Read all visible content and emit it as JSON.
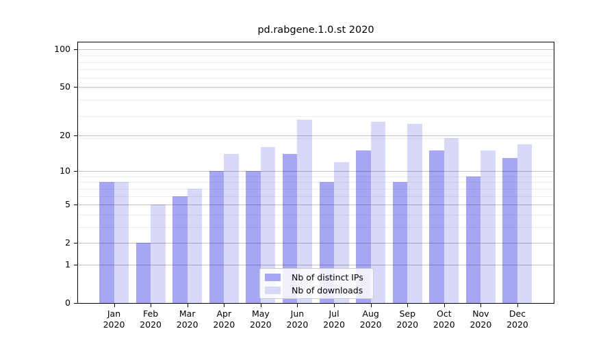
{
  "figure": {
    "background_color": "#ffffff"
  },
  "chart_data": {
    "type": "bar",
    "title": "pd.rabgene.1.0.st 2020",
    "categories": [
      "Jan",
      "Feb",
      "Mar",
      "Apr",
      "May",
      "Jun",
      "Jul",
      "Aug",
      "Sep",
      "Oct",
      "Nov",
      "Dec"
    ],
    "category_year": "2020",
    "series": [
      {
        "name": "Nb of distinct IPs",
        "color": "#a6a6f4",
        "values": [
          8,
          2,
          6,
          10,
          10,
          14,
          8,
          15,
          8,
          15,
          9,
          13
        ]
      },
      {
        "name": "Nb of downloads",
        "color": "#d8d8f9",
        "values": [
          8,
          5,
          7,
          14,
          16,
          27,
          12,
          26,
          25,
          19,
          15,
          17
        ]
      }
    ],
    "y_scale": "log1p",
    "ylim": [
      0,
      113
    ],
    "y_ticks": [
      0,
      1,
      2,
      5,
      10,
      20,
      50,
      100
    ],
    "y_minor_gridlines": [
      3,
      4,
      6,
      7,
      8,
      9,
      19,
      29,
      39,
      49,
      59,
      69,
      79,
      89
    ],
    "grid": true,
    "legend_position": "lower center",
    "axis_color": "#000000",
    "major_grid_color": "rgba(0,0,0,0.24)",
    "minor_grid_color": "rgba(0,0,0,0.07)"
  }
}
